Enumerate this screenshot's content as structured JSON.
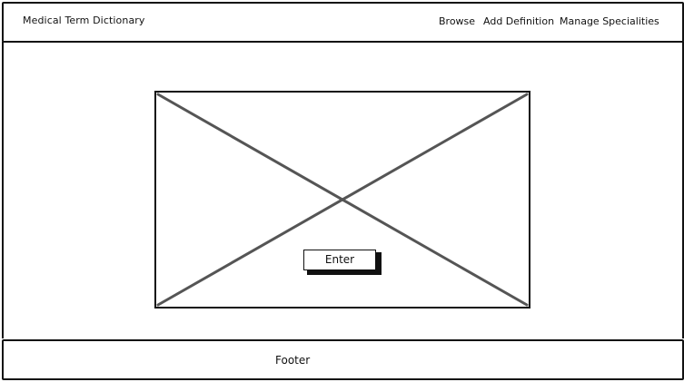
{
  "header": {
    "site_title": "Medical Term Dictionary",
    "nav": {
      "browse": "Browse",
      "add_definition": "Add Definition",
      "manage_specialities": "Manage Specialities"
    }
  },
  "hero": {
    "image_placeholder_icon": "image-placeholder-icon",
    "enter_label": "Enter"
  },
  "footer": {
    "text": "Footer"
  },
  "colors": {
    "ink": "#111111",
    "placeholder_lines": "#555555",
    "background": "#ffffff"
  }
}
